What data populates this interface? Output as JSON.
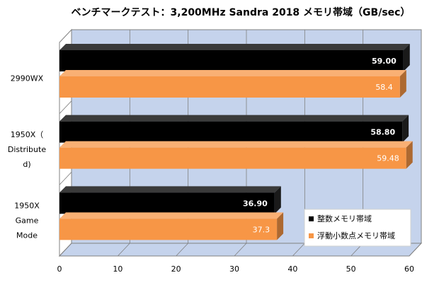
{
  "chart_data": {
    "type": "bar",
    "orientation": "horizontal",
    "style": "3d",
    "title": "ベンチマークテスト：3,200MHz Sandra 2018 メモリ帯域（GB/sec）",
    "categories": [
      [
        "2990WX"
      ],
      [
        "1950X（",
        "Distribute",
        "d)"
      ],
      [
        "1950X",
        "Game",
        "Mode"
      ]
    ],
    "series": [
      {
        "name": "整数メモリ帯域",
        "values": [
          59.0,
          58.8,
          36.9
        ],
        "labels": [
          "59.00",
          "58.80",
          "36.90"
        ],
        "color": "#000000",
        "label_color": "#ffffff"
      },
      {
        "name": "浮動小数点メモリ帯域",
        "values": [
          58.4,
          59.48,
          37.3
        ],
        "labels": [
          "58.4",
          "59.48",
          "37.3"
        ],
        "color": "#f79646",
        "label_color": "#ffffff"
      }
    ],
    "xlim": [
      0,
      60
    ],
    "xticks": [
      0,
      10,
      20,
      30,
      40,
      50,
      60
    ],
    "gridlines": true,
    "plot_background": "#c5d3ec",
    "legend_position": "bottom-right-inside"
  }
}
